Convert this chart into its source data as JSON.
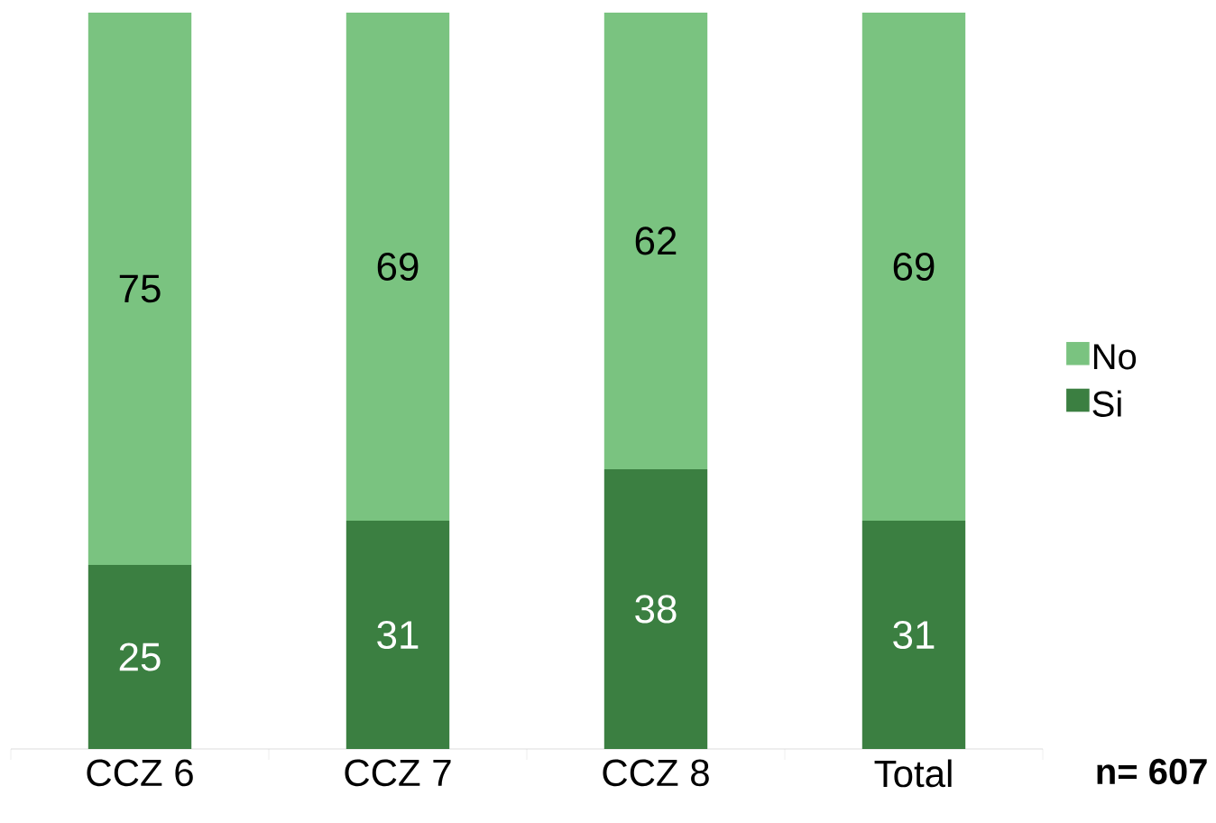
{
  "chart_data": {
    "type": "bar",
    "stacked": true,
    "data_labels": true,
    "legend": "right",
    "categories": [
      "CCZ 6",
      "CCZ 7",
      "CCZ 8",
      "Total"
    ],
    "series": [
      {
        "name": "Si",
        "color": "#3b7f41",
        "values": [
          25,
          31,
          38,
          31
        ]
      },
      {
        "name": "No",
        "color": "#7ac380",
        "values": [
          75,
          69,
          62,
          69
        ]
      }
    ],
    "annotations": [
      "**n= 607**"
    ]
  }
}
